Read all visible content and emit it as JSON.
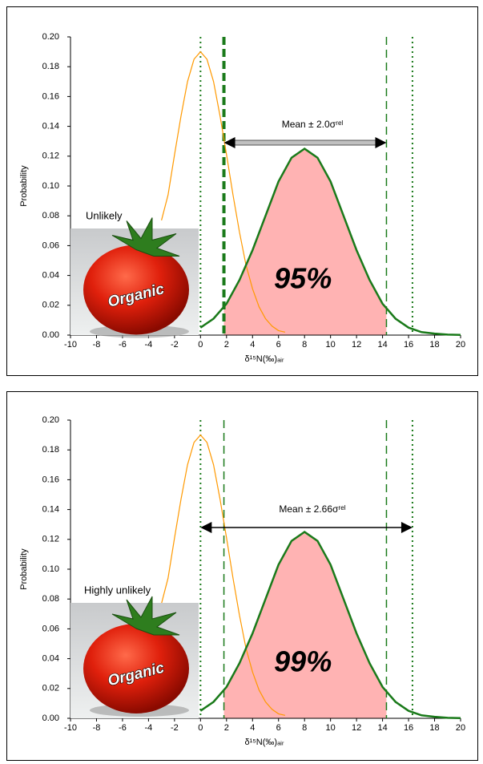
{
  "chart_data": [
    {
      "type": "line",
      "xlabel": "δ¹⁵N(‰)ₐᵢᵣ",
      "ylabel": "Probability",
      "xlim": [
        -10,
        20
      ],
      "ylim": [
        0,
        0.2
      ],
      "xticks": [
        -10,
        -8,
        -6,
        -4,
        -2,
        0,
        2,
        4,
        6,
        8,
        10,
        12,
        14,
        16,
        18,
        20
      ],
      "yticks": [
        {
          "value": 0,
          "label": "0.00"
        },
        {
          "value": 0.02,
          "label": "0.02"
        },
        {
          "value": 0.04,
          "label": "0.04"
        },
        {
          "value": 0.06,
          "label": "0.06"
        },
        {
          "value": 0.08,
          "label": "0.08"
        },
        {
          "value": 0.1,
          "label": "0.10"
        },
        {
          "value": 0.12,
          "label": "0.12"
        },
        {
          "value": 0.14,
          "label": "0.14"
        },
        {
          "value": 0.16,
          "label": "0.16"
        },
        {
          "value": 0.18,
          "label": "0.18"
        },
        {
          "value": 0.2,
          "label": "0.20"
        }
      ],
      "series": [
        {
          "color": "#ff9900",
          "x": [
            -3,
            -2.5,
            -2,
            -1.5,
            -1,
            -0.5,
            0,
            0.5,
            1,
            1.5,
            2,
            2.5,
            3,
            3.5,
            4,
            4.5,
            5,
            5.5,
            6,
            6.5
          ],
          "values": [
            0.077,
            0.094,
            0.121,
            0.147,
            0.17,
            0.185,
            0.19,
            0.185,
            0.17,
            0.147,
            0.121,
            0.094,
            0.069,
            0.047,
            0.031,
            0.019,
            0.011,
            0.006,
            0.003,
            0.002
          ]
        },
        {
          "color": "#1a7a1a",
          "x": [
            0,
            1,
            2,
            3,
            4,
            5,
            6,
            7,
            8,
            9,
            10,
            11,
            12,
            13,
            14,
            15,
            16,
            17,
            18,
            19,
            20
          ],
          "values": [
            0.005,
            0.011,
            0.021,
            0.037,
            0.057,
            0.08,
            0.103,
            0.119,
            0.125,
            0.119,
            0.103,
            0.08,
            0.057,
            0.037,
            0.021,
            0.011,
            0.005,
            0.002,
            0.001,
            0.0003,
            0.0001
          ]
        }
      ],
      "shade": [
        1.8,
        14.3
      ],
      "shade_color": "#ffb3b3",
      "vlines": [
        {
          "x": 0,
          "style": "dotted"
        },
        {
          "x": 1.8,
          "style": "thick-dashed"
        },
        {
          "x": 14.3,
          "style": "dashed"
        },
        {
          "x": 16.3,
          "style": "dotted"
        }
      ],
      "arrow": [
        1.8,
        14.3
      ],
      "arrow_style": "band",
      "mean_label": "Mean ± 2.0σʳᵉˡ",
      "percent_label": "95%",
      "verdict": "Unlikely",
      "image_label": "Organic"
    },
    {
      "type": "line",
      "xlabel": "δ¹⁵N(‰)ₐᵢᵣ",
      "ylabel": "Probability",
      "xlim": [
        -10,
        20
      ],
      "ylim": [
        0,
        0.2
      ],
      "xticks": [
        -10,
        -8,
        -6,
        -4,
        -2,
        0,
        2,
        4,
        6,
        8,
        10,
        12,
        14,
        16,
        18,
        20
      ],
      "yticks": [
        {
          "value": 0,
          "label": "0.00"
        },
        {
          "value": 0.02,
          "label": "0.02"
        },
        {
          "value": 0.04,
          "label": "0.04"
        },
        {
          "value": 0.06,
          "label": "0.06"
        },
        {
          "value": 0.08,
          "label": "0.08"
        },
        {
          "value": 0.1,
          "label": "0.10"
        },
        {
          "value": 0.12,
          "label": "0.12"
        },
        {
          "value": 0.14,
          "label": "0.14"
        },
        {
          "value": 0.16,
          "label": "0.16"
        },
        {
          "value": 0.18,
          "label": "0.18"
        },
        {
          "value": 0.2,
          "label": "0.20"
        }
      ],
      "series": [
        {
          "color": "#ff9900",
          "x": [
            -3,
            -2.5,
            -2,
            -1.5,
            -1,
            -0.5,
            0,
            0.5,
            1,
            1.5,
            2,
            2.5,
            3,
            3.5,
            4,
            4.5,
            5,
            5.5,
            6,
            6.5
          ],
          "values": [
            0.077,
            0.094,
            0.121,
            0.147,
            0.17,
            0.185,
            0.19,
            0.185,
            0.17,
            0.147,
            0.121,
            0.094,
            0.069,
            0.047,
            0.031,
            0.019,
            0.011,
            0.006,
            0.003,
            0.002
          ]
        },
        {
          "color": "#1a7a1a",
          "x": [
            0,
            1,
            2,
            3,
            4,
            5,
            6,
            7,
            8,
            9,
            10,
            11,
            12,
            13,
            14,
            15,
            16,
            17,
            18,
            19,
            20
          ],
          "values": [
            0.005,
            0.011,
            0.021,
            0.037,
            0.057,
            0.08,
            0.103,
            0.119,
            0.125,
            0.119,
            0.103,
            0.08,
            0.057,
            0.037,
            0.021,
            0.011,
            0.005,
            0.002,
            0.001,
            0.0003,
            0.0001
          ]
        }
      ],
      "shade": [
        1.8,
        14.3
      ],
      "shade_color": "#ffb3b3",
      "vlines": [
        {
          "x": 0,
          "style": "dotted"
        },
        {
          "x": 1.8,
          "style": "dashed"
        },
        {
          "x": 14.3,
          "style": "dashed"
        },
        {
          "x": 16.3,
          "style": "dotted"
        }
      ],
      "arrow": [
        0,
        16.3
      ],
      "arrow_style": "line",
      "mean_label": "Mean ± 2.66σʳᵉˡ",
      "percent_label": "99%",
      "verdict": "Highly unlikely",
      "image_label": "Organic"
    }
  ]
}
